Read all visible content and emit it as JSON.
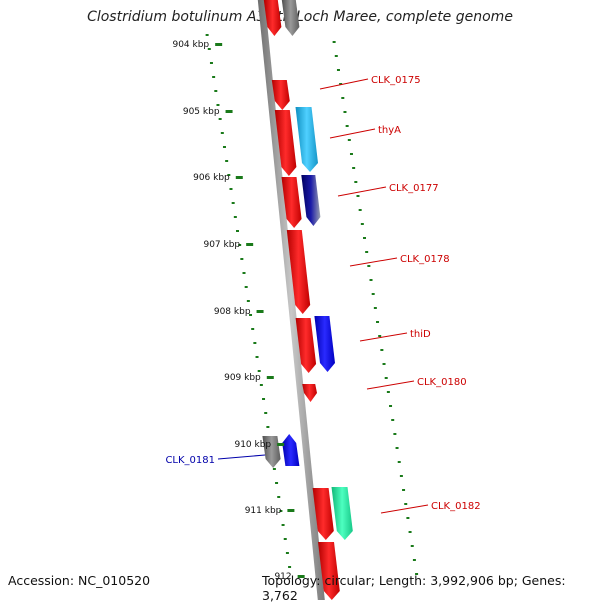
{
  "title": "Clostridium botulinum A3 str. Loch Maree, complete genome",
  "footer": {
    "accession": "Accession: NC_010520",
    "topology": "Topology: circular; Length: 3,992,906 bp; Genes: 3,762"
  },
  "colors": {
    "backbone": "#8a8a8a",
    "tick": "#1a7a1a",
    "label_red": "#cc0000",
    "label_blue": "#0000aa",
    "gene_red": "#ff0000",
    "gene_cyan": "#1ab8ee",
    "gene_navy": "#000080",
    "gene_gray": "#707070",
    "gene_blue": "#0000ee",
    "gene_green": "#20e8a0"
  },
  "ticks": [
    {
      "label": "904 kbp"
    },
    {
      "label": "905 kbp"
    },
    {
      "label": "906 kbp"
    },
    {
      "label": "907 kbp"
    },
    {
      "label": "908 kbp"
    },
    {
      "label": "909 kbp"
    },
    {
      "label": "910 kbp"
    },
    {
      "label": "911 kbp"
    },
    {
      "label": "912"
    }
  ],
  "gene_labels": [
    {
      "name": "CLK_0175",
      "color": "red"
    },
    {
      "name": "thyA",
      "color": "red"
    },
    {
      "name": "CLK_0177",
      "color": "red"
    },
    {
      "name": "CLK_0178",
      "color": "red"
    },
    {
      "name": "thiD",
      "color": "red"
    },
    {
      "name": "CLK_0180",
      "color": "red"
    },
    {
      "name": "CLK_0181",
      "color": "blue"
    },
    {
      "name": "CLK_0182",
      "color": "red"
    }
  ]
}
